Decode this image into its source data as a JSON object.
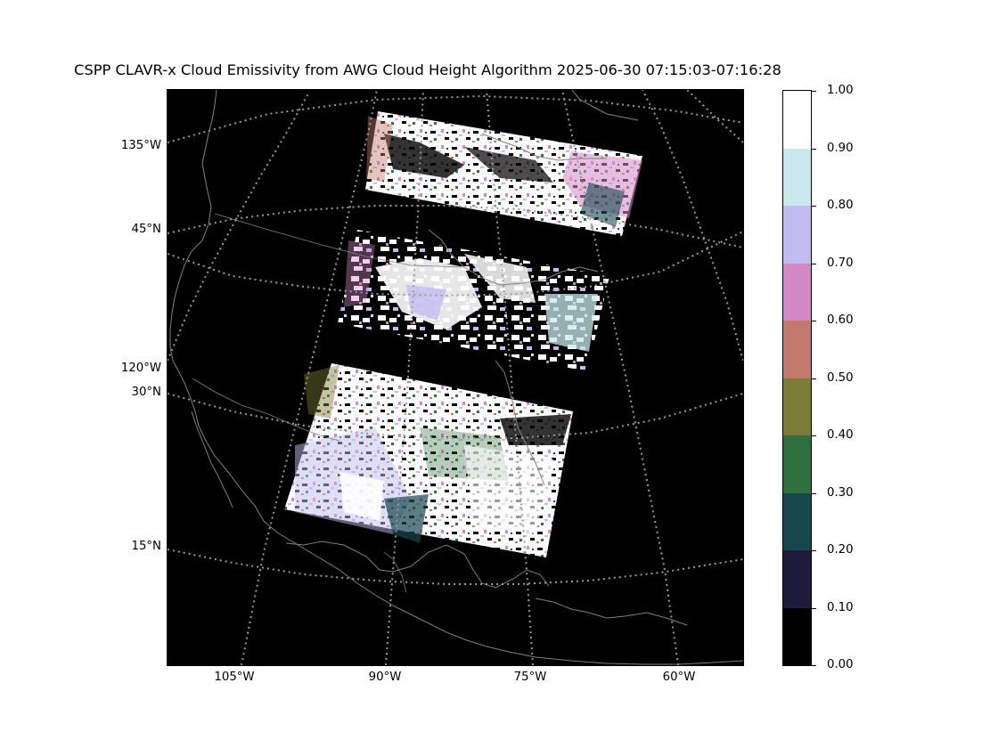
{
  "title": "CSPP CLAVR-x Cloud Emissivity from AWG Cloud Height Algorithm 2025-06-30 07:15:03-07:16:28",
  "map": {
    "projection": "lambert conformal conic",
    "background_color": "#000000",
    "coastline_color": "#808080",
    "graticule_color": "#9a9a9a",
    "graticule_style": "dotted",
    "lat_labels": [
      {
        "id": "lat-45",
        "text": "45°N"
      },
      {
        "id": "lat-30",
        "text": "30°N"
      },
      {
        "id": "lat-15",
        "text": "15°N"
      }
    ],
    "lon_labels_left": [
      {
        "id": "lon-135",
        "text": "135°W"
      },
      {
        "id": "lon-120",
        "text": "120°W"
      }
    ],
    "lon_labels_bottom": [
      {
        "id": "lon-105",
        "text": "105°W"
      },
      {
        "id": "lon-90",
        "text": "90°W"
      },
      {
        "id": "lon-75",
        "text": "75°W"
      },
      {
        "id": "lon-60",
        "text": "60°W"
      }
    ],
    "granules": [
      {
        "id": "granule-north",
        "region": "Great Lakes / southern Canada",
        "cloud_cover": "mostly white (high emissivity) with pink and green patches on the east"
      },
      {
        "id": "granule-middle",
        "region": "central and eastern United States",
        "cloud_cover": "white and light purple clouds over the Ohio Valley and the mid-Atlantic"
      },
      {
        "id": "granule-south",
        "region": "Gulf of Mexico and northern Mexico",
        "cloud_cover": "dense mixed clouds with green, brown and pink mid emissivity values"
      }
    ]
  },
  "colorbar": {
    "colormap": "cubehelix",
    "vmin": 0.0,
    "vmax": 1.0,
    "bins": [
      {
        "from": 0.0,
        "to": 0.1,
        "color": "#000000"
      },
      {
        "from": 0.1,
        "to": 0.2,
        "color": "#1d1a3b"
      },
      {
        "from": 0.2,
        "to": 0.3,
        "color": "#18464d"
      },
      {
        "from": 0.3,
        "to": 0.4,
        "color": "#2f713e"
      },
      {
        "from": 0.4,
        "to": 0.5,
        "color": "#7a7c37"
      },
      {
        "from": 0.5,
        "to": 0.6,
        "color": "#c17a6d"
      },
      {
        "from": 0.6,
        "to": 0.7,
        "color": "#d289c5"
      },
      {
        "from": 0.7,
        "to": 0.8,
        "color": "#c2bbef"
      },
      {
        "from": 0.8,
        "to": 0.9,
        "color": "#cbe9ec"
      },
      {
        "from": 0.9,
        "to": 1.0,
        "color": "#ffffff"
      }
    ],
    "ticks": [
      "0.00",
      "0.10",
      "0.20",
      "0.30",
      "0.40",
      "0.50",
      "0.60",
      "0.70",
      "0.80",
      "0.90",
      "1.00"
    ]
  }
}
